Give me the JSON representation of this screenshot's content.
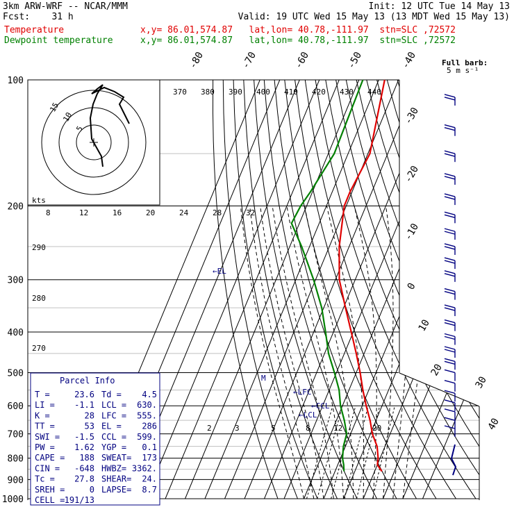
{
  "header": {
    "line1_left": "3km ARW-WRF -- NCAR/MMM",
    "line1_right": "Init: 12 UTC Tue 14 May 13",
    "line2_left": "Fcst:    31 h",
    "line2_right": "Valid: 19 UTC Wed 15 May 13 (13 MDT Wed 15 May 13)",
    "temp_label": "Temperature",
    "temp_info": "x,y= 86.01,574.87   lat,lon= 40.78,-111.97  stn=SLC ,72572",
    "dew_label": "Dewpoint temperature",
    "dew_info": "x,y= 86.01,574.87   lat,lon= 40.78,-111.97  stn=SLC ,72572"
  },
  "barb_legend": {
    "line1": "Full barb:",
    "line2": "5 m s⁻¹"
  },
  "hodo_label": "kts",
  "hodo_rings": [
    "5",
    "10",
    "15"
  ],
  "theta_labels": [
    "370",
    "380",
    "390",
    "400",
    "410",
    "420",
    "430",
    "440"
  ],
  "theta_e_labels": [
    "8",
    "12",
    "16",
    "20",
    "24",
    "28",
    "32"
  ],
  "dry_labels": [
    "290",
    "280",
    "270"
  ],
  "mix_labels": [
    "2",
    "3",
    "5",
    "8",
    "12",
    "20"
  ],
  "levels": [
    "LFC",
    "CCL",
    "LCL",
    "EL",
    "M"
  ],
  "parcel_info": {
    "title": "Parcel Info",
    "rows": [
      [
        "T   =",
        "23.6",
        "Td  =",
        "4.5"
      ],
      [
        "LI  =",
        "-1.1",
        "LCL =",
        "630."
      ],
      [
        "K   =",
        "28",
        "LFC =",
        "555."
      ],
      [
        "TT  =",
        "53",
        "EL  =",
        "286"
      ],
      [
        "SWI =",
        "-1.5",
        "CCL =",
        "599."
      ],
      [
        "PW  =",
        "1.62",
        "YGP =",
        "0.1"
      ],
      [
        "CAPE =",
        "188",
        "SWEAT=",
        "173"
      ],
      [
        "CIN  =",
        "-648",
        "HWBZ=",
        "3362."
      ],
      [
        "Tc  =",
        "27.8",
        "SHEAR=",
        "24."
      ],
      [
        "SREH =",
        "0",
        "LAPSE=",
        "8.7"
      ],
      [
        "CELL =",
        "191/13",
        "",
        ""
      ]
    ]
  },
  "chart_data": {
    "type": "line",
    "title": "",
    "pressure_ticks": [
      "100",
      "200",
      "300",
      "400",
      "500",
      "600",
      "700",
      "800",
      "900",
      "1000"
    ],
    "temp_ticks": [
      "-80",
      "-70",
      "-60",
      "-50",
      "-40",
      "-30",
      "-20",
      "-10",
      "0",
      "10",
      "20",
      "30",
      "40"
    ],
    "series": [
      {
        "name": "Temperature",
        "color": "#e00000",
        "points": [
          [
            100,
            -57
          ],
          [
            150,
            -49
          ],
          [
            185,
            -51
          ],
          [
            200,
            -51
          ],
          [
            250,
            -45
          ],
          [
            300,
            -38
          ],
          [
            350,
            -29
          ],
          [
            400,
            -21
          ],
          [
            450,
            -14
          ],
          [
            500,
            -8
          ],
          [
            550,
            -3
          ],
          [
            600,
            2
          ],
          [
            650,
            7
          ],
          [
            700,
            11
          ],
          [
            750,
            16
          ],
          [
            800,
            19
          ],
          [
            830,
            20
          ],
          [
            860,
            23.6
          ]
        ]
      },
      {
        "name": "Dewpoint temperature",
        "color": "#008000",
        "points": [
          [
            100,
            -68
          ],
          [
            150,
            -67
          ],
          [
            185,
            -71
          ],
          [
            200,
            -73
          ],
          [
            220,
            -74
          ],
          [
            250,
            -64
          ],
          [
            300,
            -51
          ],
          [
            350,
            -41
          ],
          [
            400,
            -34
          ],
          [
            450,
            -28
          ],
          [
            500,
            -21
          ],
          [
            550,
            -15
          ],
          [
            600,
            -11
          ],
          [
            650,
            -6
          ],
          [
            700,
            -2
          ],
          [
            750,
            -1
          ],
          [
            800,
            1
          ],
          [
            830,
            3
          ],
          [
            860,
            4.5
          ]
        ]
      }
    ],
    "ylim": [
      1000,
      100
    ]
  }
}
